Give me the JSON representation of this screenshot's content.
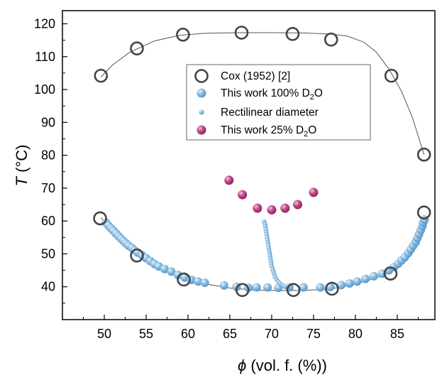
{
  "chart_data": {
    "type": "scatter",
    "xlabel": {
      "symbol": "ϕ",
      "rest": " (vol. f. (%))"
    },
    "ylabel": {
      "symbol": "T",
      "rest": " (°C)"
    },
    "xlim": [
      45,
      89.5
    ],
    "ylim": [
      30,
      124
    ],
    "xticks": [
      50,
      55,
      60,
      65,
      70,
      75,
      80,
      85
    ],
    "yticks": [
      40,
      50,
      60,
      70,
      80,
      90,
      100,
      110,
      120
    ],
    "grid": false,
    "legend_position": "center",
    "legend": [
      {
        "label": "Cox (1952) [2]",
        "marker": "open-circle"
      },
      {
        "label": "This work 100% D",
        "sub": "2",
        "tail": "O",
        "marker": "blue-ball"
      },
      {
        "label": "Rectilinear diameter",
        "marker": "small-blue-ball"
      },
      {
        "label": "This work 25% D",
        "sub": "2",
        "tail": "O",
        "marker": "magenta-ball"
      }
    ],
    "colors": {
      "blue": "#7fb3dd",
      "magenta": "#b5387f",
      "open_circle": "#444444",
      "fit_line": "#555555"
    },
    "series": [
      {
        "name": "Cox (1952) [2]",
        "marker": "open-circle",
        "points": [
          [
            49.6,
            104.2
          ],
          [
            53.9,
            112.5
          ],
          [
            59.4,
            116.7
          ],
          [
            66.4,
            117.3
          ],
          [
            72.5,
            116.9
          ],
          [
            77.1,
            115.2
          ],
          [
            84.3,
            104.2
          ],
          [
            88.2,
            80.2
          ],
          [
            49.5,
            60.8
          ],
          [
            53.9,
            49.5
          ],
          [
            59.5,
            42.2
          ],
          [
            66.5,
            39.0
          ],
          [
            72.6,
            39.0
          ],
          [
            77.2,
            39.4
          ],
          [
            84.2,
            44.0
          ],
          [
            88.2,
            62.6
          ]
        ]
      },
      {
        "name": "This work 100% D2O",
        "marker": "blue-ball",
        "points": [
          [
            50.2,
            59.5
          ],
          [
            50.5,
            58.6
          ],
          [
            50.8,
            57.8
          ],
          [
            51.1,
            57.0
          ],
          [
            51.4,
            56.2
          ],
          [
            51.7,
            55.4
          ],
          [
            52.0,
            54.6
          ],
          [
            52.3,
            53.9
          ],
          [
            52.6,
            53.2
          ],
          [
            52.9,
            52.5
          ],
          [
            53.3,
            51.8
          ],
          [
            53.6,
            51.1
          ],
          [
            54.0,
            50.4
          ],
          [
            54.5,
            49.6
          ],
          [
            55.0,
            48.7
          ],
          [
            55.5,
            47.8
          ],
          [
            56.0,
            46.9
          ],
          [
            56.5,
            46.2
          ],
          [
            57.2,
            45.4
          ],
          [
            58.0,
            44.6
          ],
          [
            58.8,
            43.6
          ],
          [
            59.6,
            42.8
          ],
          [
            60.4,
            42.1
          ],
          [
            61.2,
            41.6
          ],
          [
            62.0,
            41.2
          ],
          [
            64.3,
            40.4
          ],
          [
            65.8,
            40.0
          ],
          [
            67.2,
            39.7
          ],
          [
            68.2,
            39.8
          ],
          [
            69.5,
            39.8
          ],
          [
            70.8,
            39.7
          ],
          [
            72.1,
            39.8
          ],
          [
            73.8,
            39.8
          ],
          [
            75.8,
            39.8
          ],
          [
            77.0,
            39.9
          ],
          [
            78.3,
            40.5
          ],
          [
            79.3,
            41.0
          ],
          [
            80.2,
            41.6
          ],
          [
            81.2,
            42.4
          ],
          [
            82.2,
            43.2
          ],
          [
            83.2,
            44.0
          ],
          [
            84.0,
            45.0
          ],
          [
            84.6,
            46.0
          ],
          [
            85.1,
            47.0
          ],
          [
            85.5,
            48.0
          ],
          [
            85.9,
            49.0
          ],
          [
            86.3,
            50.2
          ],
          [
            86.6,
            51.3
          ],
          [
            86.9,
            52.5
          ],
          [
            87.2,
            53.6
          ],
          [
            87.4,
            54.8
          ],
          [
            87.6,
            56.0
          ],
          [
            87.8,
            57.2
          ],
          [
            88.0,
            58.4
          ],
          [
            88.1,
            59.5
          ],
          [
            88.25,
            60.4
          ]
        ]
      },
      {
        "name": "Rectilinear diameter",
        "marker": "small-blue-ball",
        "points": [
          [
            69.1,
            59.8
          ],
          [
            69.2,
            59.0
          ],
          [
            69.25,
            58.2
          ],
          [
            69.3,
            57.4
          ],
          [
            69.35,
            56.6
          ],
          [
            69.4,
            55.8
          ],
          [
            69.45,
            55.0
          ],
          [
            69.5,
            54.2
          ],
          [
            69.55,
            53.4
          ],
          [
            69.6,
            52.6
          ],
          [
            69.65,
            51.8
          ],
          [
            69.7,
            51.0
          ],
          [
            69.75,
            50.2
          ],
          [
            69.8,
            49.4
          ],
          [
            69.85,
            48.6
          ],
          [
            69.9,
            47.8
          ],
          [
            69.95,
            47.0
          ],
          [
            70.0,
            46.2
          ],
          [
            70.1,
            45.4
          ],
          [
            70.2,
            44.6
          ],
          [
            70.3,
            43.8
          ],
          [
            70.4,
            43.0
          ],
          [
            70.6,
            42.2
          ],
          [
            70.8,
            41.5
          ],
          [
            71.0,
            40.9
          ],
          [
            71.3,
            40.4
          ],
          [
            71.6,
            40.0
          ]
        ]
      },
      {
        "name": "This work 25% D2O",
        "marker": "magenta-ball",
        "points": [
          [
            64.9,
            72.4
          ],
          [
            66.5,
            68.0
          ],
          [
            68.3,
            63.9
          ],
          [
            70.0,
            63.4
          ],
          [
            71.6,
            63.9
          ],
          [
            73.1,
            65.0
          ],
          [
            75.0,
            68.7
          ]
        ]
      }
    ],
    "fit_lines": [
      {
        "name": "upper-fit",
        "points": [
          [
            49.6,
            103.8
          ],
          [
            51.0,
            107.5
          ],
          [
            53.0,
            111.3
          ],
          [
            56.0,
            114.8
          ],
          [
            59.0,
            116.5
          ],
          [
            62.0,
            117.1
          ],
          [
            66.0,
            117.3
          ],
          [
            70.0,
            117.3
          ],
          [
            74.0,
            117.2
          ],
          [
            77.0,
            116.9
          ],
          [
            79.0,
            116.3
          ],
          [
            81.0,
            114.4
          ],
          [
            82.5,
            111.4
          ],
          [
            84.0,
            106.3
          ],
          [
            85.5,
            99.5
          ],
          [
            86.8,
            91.6
          ],
          [
            88.2,
            80.2
          ]
        ]
      },
      {
        "name": "lower-fit",
        "points": [
          [
            49.6,
            61.0
          ],
          [
            51.0,
            56.5
          ],
          [
            53.0,
            51.3
          ],
          [
            55.0,
            47.8
          ],
          [
            57.0,
            45.0
          ],
          [
            59.5,
            42.6
          ],
          [
            62.0,
            40.9
          ],
          [
            65.0,
            39.6
          ],
          [
            68.0,
            39.0
          ],
          [
            71.0,
            38.8
          ],
          [
            74.0,
            38.9
          ],
          [
            77.0,
            39.3
          ],
          [
            80.0,
            40.8
          ],
          [
            82.5,
            42.7
          ],
          [
            84.3,
            44.8
          ],
          [
            85.5,
            47.3
          ],
          [
            86.5,
            50.5
          ],
          [
            87.3,
            54.2
          ],
          [
            88.2,
            61.8
          ]
        ]
      }
    ]
  }
}
